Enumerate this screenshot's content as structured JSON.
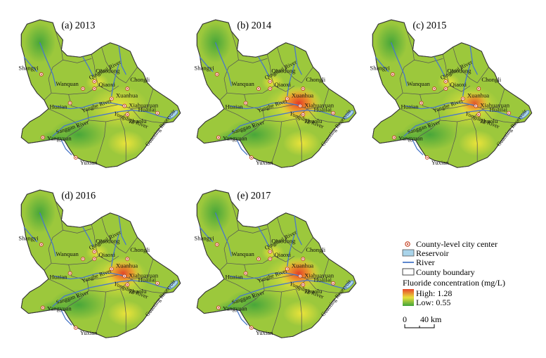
{
  "panels": [
    {
      "label": "(a) 2013",
      "hotspot": 0.0
    },
    {
      "label": "(b) 2014",
      "hotspot": 1.0
    },
    {
      "label": "(c) 2015",
      "hotspot": 0.55
    },
    {
      "label": "(d) 2016",
      "hotspot": 0.8
    },
    {
      "label": "(e) 2017",
      "hotspot": 0.9
    }
  ],
  "cities": [
    "Shangyi",
    "Wanquan",
    "Qiaodong",
    "Qiaoxi",
    "Chongli",
    "Huaian",
    "Xuanhua",
    "Xiahuayuan",
    "Huailai",
    "Zhuolu",
    "Yangyuan",
    "Yuxian"
  ],
  "rivers": [
    "Qingshui River",
    "Yanghe River",
    "Sanggan River",
    "Yongding River",
    "Guanting Reservoir"
  ],
  "legend": {
    "city": "County-level city center",
    "reservoir": "Reservoir",
    "river": "River",
    "boundary": "County boundary",
    "fluoride_title": "Fluoride concentration (mg/L)",
    "high": "High: 1.28",
    "low": "Low: 0.55",
    "scale_0": "0",
    "scale_40": "40 km"
  },
  "colors": {
    "base_green": "#9cc83c",
    "low_green": "#3fa33a",
    "mid_yellow": "#e8e03a",
    "high_red": "#e8452a",
    "river": "#4a78c8",
    "reservoir": "#a9d4ea"
  }
}
